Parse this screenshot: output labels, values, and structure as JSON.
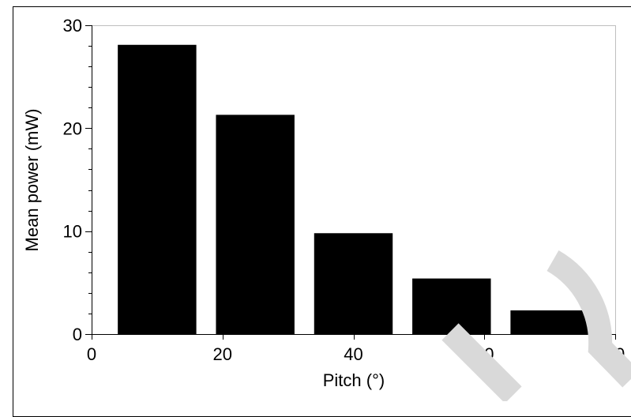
{
  "chart_data": {
    "type": "bar",
    "title": "",
    "xlabel": "Pitch (°)",
    "ylabel": "Mean power (mW)",
    "xlim": [
      0,
      80
    ],
    "ylim": [
      0,
      30
    ],
    "x_ticks": [
      0,
      20,
      40,
      60,
      80
    ],
    "y_ticks": [
      0,
      10,
      20,
      30
    ],
    "bars": [
      {
        "x_start": 4,
        "x_end": 16,
        "value": 28.1
      },
      {
        "x_start": 19,
        "x_end": 31,
        "value": 21.3
      },
      {
        "x_start": 34,
        "x_end": 46,
        "value": 9.8
      },
      {
        "x_start": 49,
        "x_end": 61,
        "value": 5.4
      },
      {
        "x_start": 64,
        "x_end": 76,
        "value": 2.3
      }
    ],
    "bar_color": "#000000",
    "grid": false,
    "legend": "none"
  },
  "watermark_color": "#d9d9d9"
}
